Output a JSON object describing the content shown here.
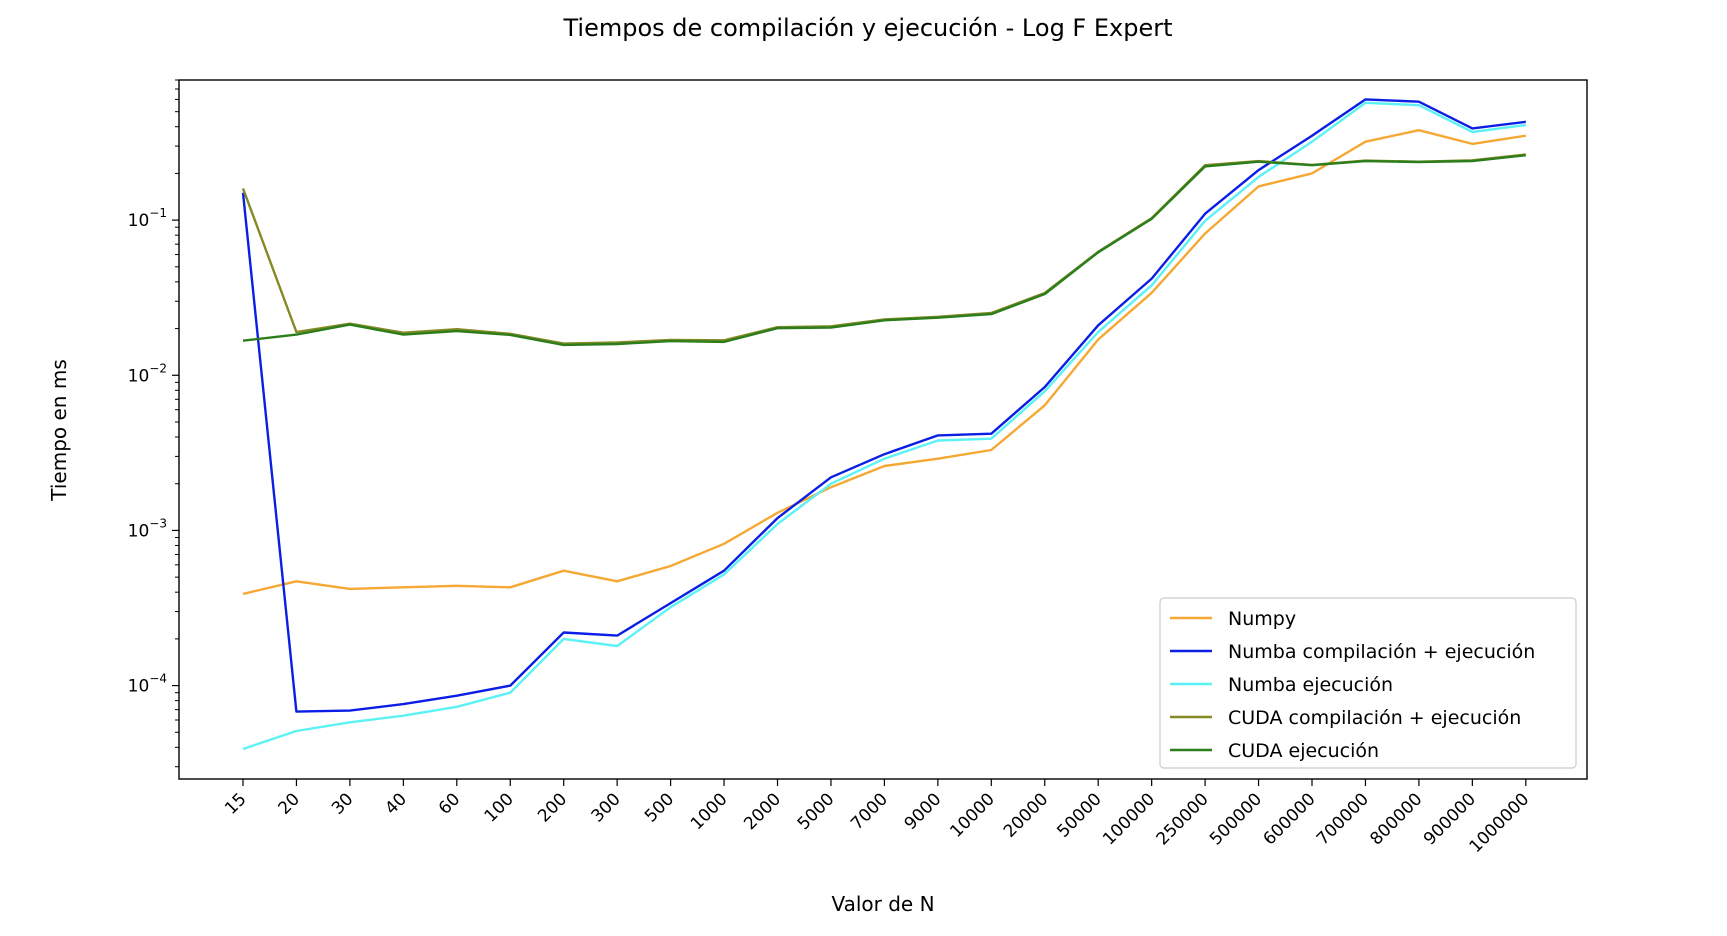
{
  "chart_data": {
    "type": "line",
    "title": "Tiempos de compilación y ejecución - Log F Expert",
    "xlabel": "Valor de N",
    "ylabel": "Tiempo en ms",
    "yscale": "log",
    "ylim": [
      2.5e-05,
      0.8
    ],
    "grid": false,
    "legend_position": "lower-right",
    "categories": [
      "15",
      "20",
      "30",
      "40",
      "60",
      "100",
      "200",
      "300",
      "500",
      "1000",
      "2000",
      "5000",
      "7000",
      "9000",
      "10000",
      "20000",
      "50000",
      "100000",
      "250000",
      "500000",
      "600000",
      "700000",
      "800000",
      "900000",
      "1000000"
    ],
    "yticks": [
      {
        "value": 0.0001,
        "base": "10",
        "exp": "−4"
      },
      {
        "value": 0.001,
        "base": "10",
        "exp": "−3"
      },
      {
        "value": 0.01,
        "base": "10",
        "exp": "−2"
      },
      {
        "value": 0.1,
        "base": "10",
        "exp": "−1"
      }
    ],
    "series": [
      {
        "name": "Numpy",
        "color": "#f5a833",
        "values": [
          0.00039,
          0.00047,
          0.00042,
          0.00043,
          0.00044,
          0.00043,
          0.00055,
          0.00047,
          0.00059,
          0.00082,
          0.0013,
          0.0019,
          0.0026,
          0.0029,
          0.0033,
          0.0064,
          0.017,
          0.034,
          0.082,
          0.165,
          0.2,
          0.32,
          0.38,
          0.31,
          0.35
        ]
      },
      {
        "name": "Numba compilación + ejecución",
        "color": "#0a1ee6",
        "values": [
          0.15,
          6.8e-05,
          6.9e-05,
          7.6e-05,
          8.6e-05,
          0.0001,
          0.00022,
          0.00021,
          0.00034,
          0.00055,
          0.0012,
          0.0022,
          0.0031,
          0.0041,
          0.0042,
          0.0084,
          0.021,
          0.042,
          0.11,
          0.21,
          0.35,
          0.6,
          0.58,
          0.39,
          0.43
        ]
      },
      {
        "name": "Numba ejecución",
        "color": "#5cf2f5",
        "values": [
          3.9e-05,
          5.1e-05,
          5.8e-05,
          6.4e-05,
          7.3e-05,
          9e-05,
          0.0002,
          0.00018,
          0.00032,
          0.00052,
          0.0011,
          0.002,
          0.0029,
          0.0038,
          0.0039,
          0.0079,
          0.019,
          0.038,
          0.099,
          0.19,
          0.32,
          0.57,
          0.55,
          0.37,
          0.41
        ]
      },
      {
        "name": "CUDA compilación + ejecución",
        "color": "#858a25",
        "values": [
          0.16,
          0.019,
          0.0215,
          0.0188,
          0.0198,
          0.0185,
          0.016,
          0.0163,
          0.0169,
          0.0168,
          0.0204,
          0.0207,
          0.0229,
          0.0238,
          0.0252,
          0.0339,
          0.0625,
          0.103,
          0.226,
          0.24,
          0.227,
          0.242,
          0.238,
          0.243,
          0.265
        ]
      },
      {
        "name": "CUDA ejecución",
        "color": "#2b7e1b",
        "values": [
          0.0167,
          0.0183,
          0.0212,
          0.0183,
          0.0193,
          0.0182,
          0.0157,
          0.0159,
          0.0166,
          0.0164,
          0.0201,
          0.0203,
          0.0226,
          0.0235,
          0.0248,
          0.0334,
          0.062,
          0.102,
          0.222,
          0.238,
          0.226,
          0.24,
          0.237,
          0.24,
          0.262
        ]
      }
    ]
  }
}
